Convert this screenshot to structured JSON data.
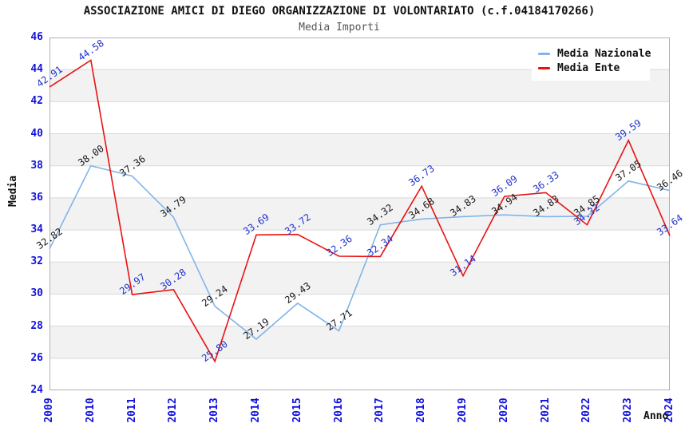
{
  "header": {
    "title": "ASSOCIAZIONE AMICI DI DIEGO ORGANIZZAZIONE DI VOLONTARIATO (c.f.04184170266)",
    "subtitle": "Media Importi"
  },
  "chart_data": {
    "type": "line",
    "title": "ASSOCIAZIONE AMICI DI DIEGO ORGANIZZAZIONE DI VOLONTARIATO (c.f.04184170266)",
    "subtitle": "Media Importi",
    "xlabel": "Anno",
    "ylabel": "Media",
    "categories": [
      "2009",
      "2010",
      "2011",
      "2012",
      "2013",
      "2014",
      "2015",
      "2016",
      "2017",
      "2018",
      "2019",
      "2020",
      "2021",
      "2022",
      "2023",
      "2024"
    ],
    "series": [
      {
        "name": "Media Nazionale",
        "color": "#82b4e8",
        "label_color": "#1a1a1a",
        "values": [
          32.82,
          38.0,
          37.36,
          34.79,
          29.24,
          27.19,
          29.43,
          27.71,
          34.32,
          34.68,
          34.83,
          34.94,
          34.83,
          34.85,
          37.05,
          36.46
        ]
      },
      {
        "name": "Media Ente",
        "color": "#e81212",
        "label_color": "#2233cc",
        "values": [
          42.91,
          44.58,
          29.97,
          30.28,
          25.8,
          33.69,
          33.72,
          32.36,
          32.34,
          36.73,
          31.14,
          36.09,
          36.33,
          34.32,
          39.59,
          33.64
        ]
      }
    ],
    "ylim": [
      24,
      46
    ],
    "ytick_step": 2,
    "grid": "horizontal",
    "legend_position": "top-right",
    "band_colors": [
      "#ffffff",
      "#f2f2f2"
    ],
    "gridline_color": "#d9d9d9",
    "border_color": "#b0b0b0",
    "tick_color": "#1212dd",
    "value_label_decimals": 2
  }
}
